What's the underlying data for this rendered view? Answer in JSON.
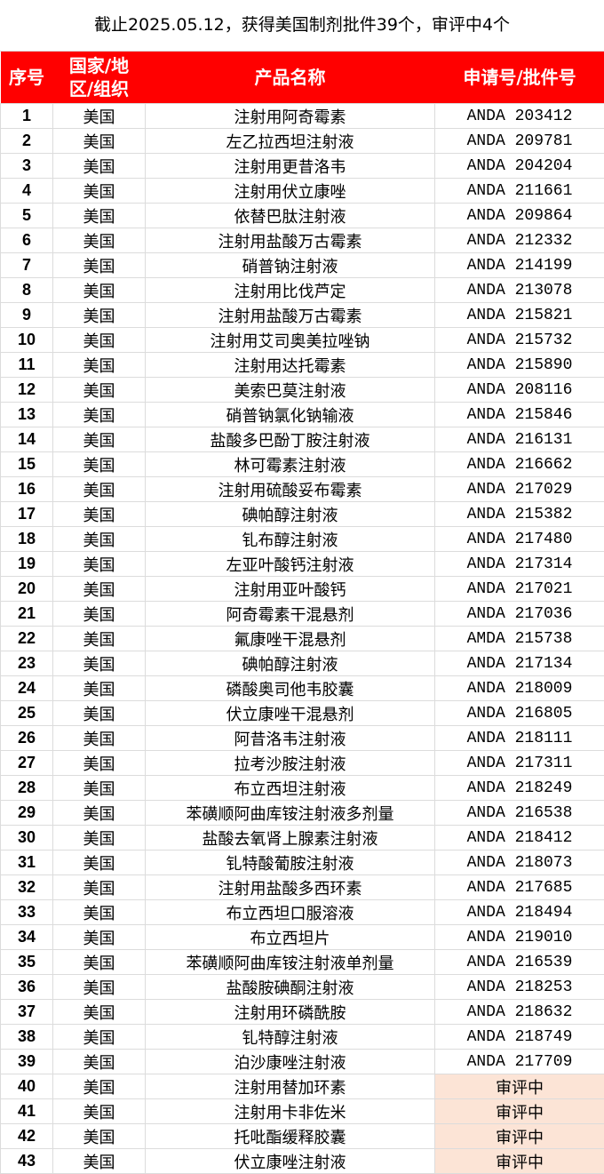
{
  "title": "截止2025.05.12，获得美国制剂批件39个，审评中4个",
  "colors": {
    "header_bg": "#ff0000",
    "header_text": "#ffffff",
    "pending_bg": "#fce4d6"
  },
  "headers": [
    "序号",
    "国家/地区/组织",
    "产品名称",
    "申请号/批件号"
  ],
  "rows": [
    [
      "1",
      "美国",
      "注射用阿奇霉素",
      "ANDA 203412"
    ],
    [
      "2",
      "美国",
      "左乙拉西坦注射液",
      "ANDA 209781"
    ],
    [
      "3",
      "美国",
      "注射用更昔洛韦",
      "ANDA 204204"
    ],
    [
      "4",
      "美国",
      "注射用伏立康唑",
      "ANDA 211661"
    ],
    [
      "5",
      "美国",
      "依替巴肽注射液",
      "ANDA 209864"
    ],
    [
      "6",
      "美国",
      "注射用盐酸万古霉素",
      "ANDA 212332"
    ],
    [
      "7",
      "美国",
      "硝普钠注射液",
      "ANDA 214199"
    ],
    [
      "8",
      "美国",
      "注射用比伐芦定",
      "ANDA 213078"
    ],
    [
      "9",
      "美国",
      "注射用盐酸万古霉素",
      "ANDA 215821"
    ],
    [
      "10",
      "美国",
      "注射用艾司奥美拉唑钠",
      "ANDA 215732"
    ],
    [
      "11",
      "美国",
      "注射用达托霉素",
      "ANDA 215890"
    ],
    [
      "12",
      "美国",
      "美索巴莫注射液",
      "ANDA 208116"
    ],
    [
      "13",
      "美国",
      "硝普钠氯化钠输液",
      "ANDA 215846"
    ],
    [
      "14",
      "美国",
      "盐酸多巴酚丁胺注射液",
      "ANDA 216131"
    ],
    [
      "15",
      "美国",
      "林可霉素注射液",
      "ANDA 216662"
    ],
    [
      "16",
      "美国",
      "注射用硫酸妥布霉素",
      "ANDA 217029"
    ],
    [
      "17",
      "美国",
      "碘帕醇注射液",
      "ANDA 215382"
    ],
    [
      "18",
      "美国",
      "钆布醇注射液",
      "ANDA 217480"
    ],
    [
      "19",
      "美国",
      "左亚叶酸钙注射液",
      "ANDA 217314"
    ],
    [
      "20",
      "美国",
      "注射用亚叶酸钙",
      "ANDA 217021"
    ],
    [
      "21",
      "美国",
      "阿奇霉素干混悬剂",
      "ANDA 217036"
    ],
    [
      "22",
      "美国",
      "氟康唑干混悬剂",
      "AMDA 215738"
    ],
    [
      "23",
      "美国",
      "碘帕醇注射液",
      "ANDA 217134"
    ],
    [
      "24",
      "美国",
      "磷酸奥司他韦胶囊",
      "ANDA 218009"
    ],
    [
      "25",
      "美国",
      "伏立康唑干混悬剂",
      "ANDA 216805"
    ],
    [
      "26",
      "美国",
      "阿昔洛韦注射液",
      "ANDA 218111"
    ],
    [
      "27",
      "美国",
      "拉考沙胺注射液",
      "ANDA 217311"
    ],
    [
      "28",
      "美国",
      "布立西坦注射液",
      "ANDA 218249"
    ],
    [
      "29",
      "美国",
      "苯磺顺阿曲库铵注射液多剂量",
      "ANDA 216538"
    ],
    [
      "30",
      "美国",
      "盐酸去氧肾上腺素注射液",
      "ANDA 218412"
    ],
    [
      "31",
      "美国",
      "钆特酸葡胺注射液",
      "ANDA 218073"
    ],
    [
      "32",
      "美国",
      "注射用盐酸多西环素",
      "ANDA 217685"
    ],
    [
      "33",
      "美国",
      "布立西坦口服溶液",
      "ANDA 218494"
    ],
    [
      "34",
      "美国",
      "布立西坦片",
      "ANDA 219010"
    ],
    [
      "35",
      "美国",
      "苯磺顺阿曲库铵注射液单剂量",
      "ANDA 216539"
    ],
    [
      "36",
      "美国",
      "盐酸胺碘酮注射液",
      "ANDA 218253"
    ],
    [
      "37",
      "美国",
      "注射用环磷酰胺",
      "ANDA 218632"
    ],
    [
      "38",
      "美国",
      "钆特醇注射液",
      "ANDA 218749"
    ],
    [
      "39",
      "美国",
      "泊沙康唑注射液",
      "ANDA 217709"
    ],
    [
      "40",
      "美国",
      "注射用替加环素",
      "审评中"
    ],
    [
      "41",
      "美国",
      "注射用卡非佐米",
      "审评中"
    ],
    [
      "42",
      "美国",
      "托吡酯缓释胶囊",
      "审评中"
    ],
    [
      "43",
      "美国",
      "伏立康唑注射液",
      "审评中"
    ]
  ],
  "pending_status": "审评中"
}
